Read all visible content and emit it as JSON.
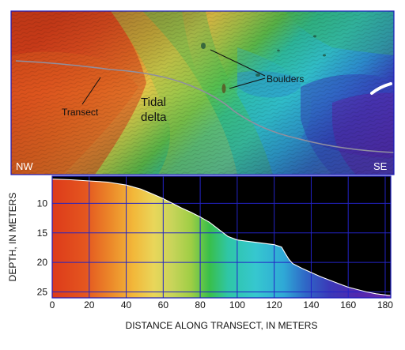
{
  "map_view": {
    "annotations": {
      "boulders": "Boulders",
      "transect": "Transect",
      "tidal_delta_line1": "Tidal",
      "tidal_delta_line2": "delta"
    },
    "direction_labels": {
      "west_end": "NW",
      "east_end": "SE"
    }
  },
  "chart_data": {
    "type": "area",
    "title": "",
    "xlabel": "DISTANCE ALONG TRANSECT, IN METERS",
    "ylabel": "DEPTH, IN METERS",
    "xlim": [
      0,
      183
    ],
    "ylim": [
      5.4,
      26
    ],
    "y_inverted": true,
    "grid": true,
    "x_ticks": [
      0,
      20,
      40,
      60,
      80,
      100,
      120,
      140,
      160,
      180
    ],
    "y_ticks": [
      10,
      15,
      20,
      25
    ],
    "profile": {
      "x": [
        0,
        10,
        20,
        30,
        40,
        48,
        55,
        60,
        65,
        70,
        75,
        80,
        85,
        90,
        95,
        100,
        105,
        110,
        115,
        120,
        124,
        126,
        128,
        130,
        135,
        140,
        145,
        150,
        155,
        160,
        165,
        170,
        175,
        180,
        183
      ],
      "depth": [
        5.9,
        6.0,
        6.2,
        6.4,
        6.9,
        7.6,
        8.5,
        9.2,
        10.0,
        10.8,
        11.5,
        12.3,
        13.2,
        14.4,
        15.6,
        16.2,
        16.4,
        16.6,
        16.8,
        17.0,
        17.4,
        18.5,
        19.5,
        20.2,
        21.0,
        21.7,
        22.4,
        23.0,
        23.6,
        24.2,
        24.6,
        25.0,
        25.3,
        25.5,
        25.6
      ]
    },
    "fill_color_stops": [
      {
        "x": 0,
        "color": "#dd3a1a"
      },
      {
        "x": 18,
        "color": "#e4561f"
      },
      {
        "x": 32,
        "color": "#ec8a2a"
      },
      {
        "x": 44,
        "color": "#f2b83a"
      },
      {
        "x": 55,
        "color": "#e9d65a"
      },
      {
        "x": 65,
        "color": "#c7d45a"
      },
      {
        "x": 75,
        "color": "#9fce45"
      },
      {
        "x": 85,
        "color": "#39bf4a"
      },
      {
        "x": 95,
        "color": "#2fc6a6"
      },
      {
        "x": 110,
        "color": "#36c7cf"
      },
      {
        "x": 125,
        "color": "#2fa9d6"
      },
      {
        "x": 137,
        "color": "#2f67c6"
      },
      {
        "x": 150,
        "color": "#3b39b8"
      },
      {
        "x": 165,
        "color": "#5228ae"
      },
      {
        "x": 183,
        "color": "#6a2aa8"
      }
    ],
    "colors": {
      "grid": "#2323c6",
      "background": "#000000",
      "profile_line": "#ffffff",
      "panel_border": "#1d1dbd"
    }
  }
}
